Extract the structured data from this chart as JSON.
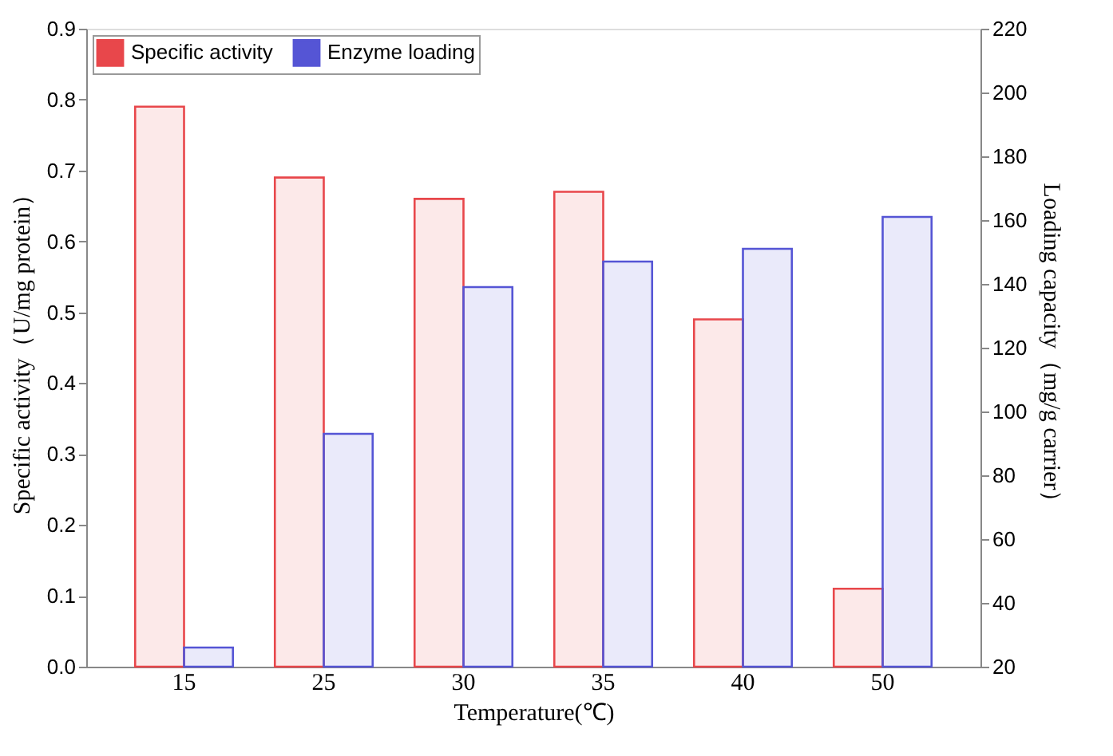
{
  "chart_data": {
    "type": "bar",
    "xlabel": "Temperature(℃)",
    "ylabel": "Specific activity（U/mg  protein）",
    "y2label": "Loading capacity（mg/g carrier）",
    "categories": [
      "15",
      "25",
      "30",
      "35",
      "40",
      "50"
    ],
    "series": [
      {
        "name": "Specific activity",
        "color": "#e8474b",
        "values": [
          0.79,
          0.69,
          0.66,
          0.67,
          0.49,
          0.11
        ]
      },
      {
        "name": "Enzyme loading",
        "color": "#5555d5",
        "axis": "y2",
        "values": [
          26,
          93,
          139,
          147,
          151,
          161
        ]
      }
    ],
    "ylim": [
      0,
      0.9
    ],
    "yticks": [
      {
        "value": 0,
        "label": "0.0"
      },
      0.1,
      0.2,
      0.3,
      0.4,
      0.5,
      0.6,
      0.7,
      0.8,
      0.9
    ],
    "y2lim": [
      20,
      220
    ],
    "y2ticks": [
      20,
      40,
      60,
      80,
      100,
      120,
      140,
      160,
      180,
      200,
      220
    ],
    "grid": false,
    "legend": "top left"
  }
}
